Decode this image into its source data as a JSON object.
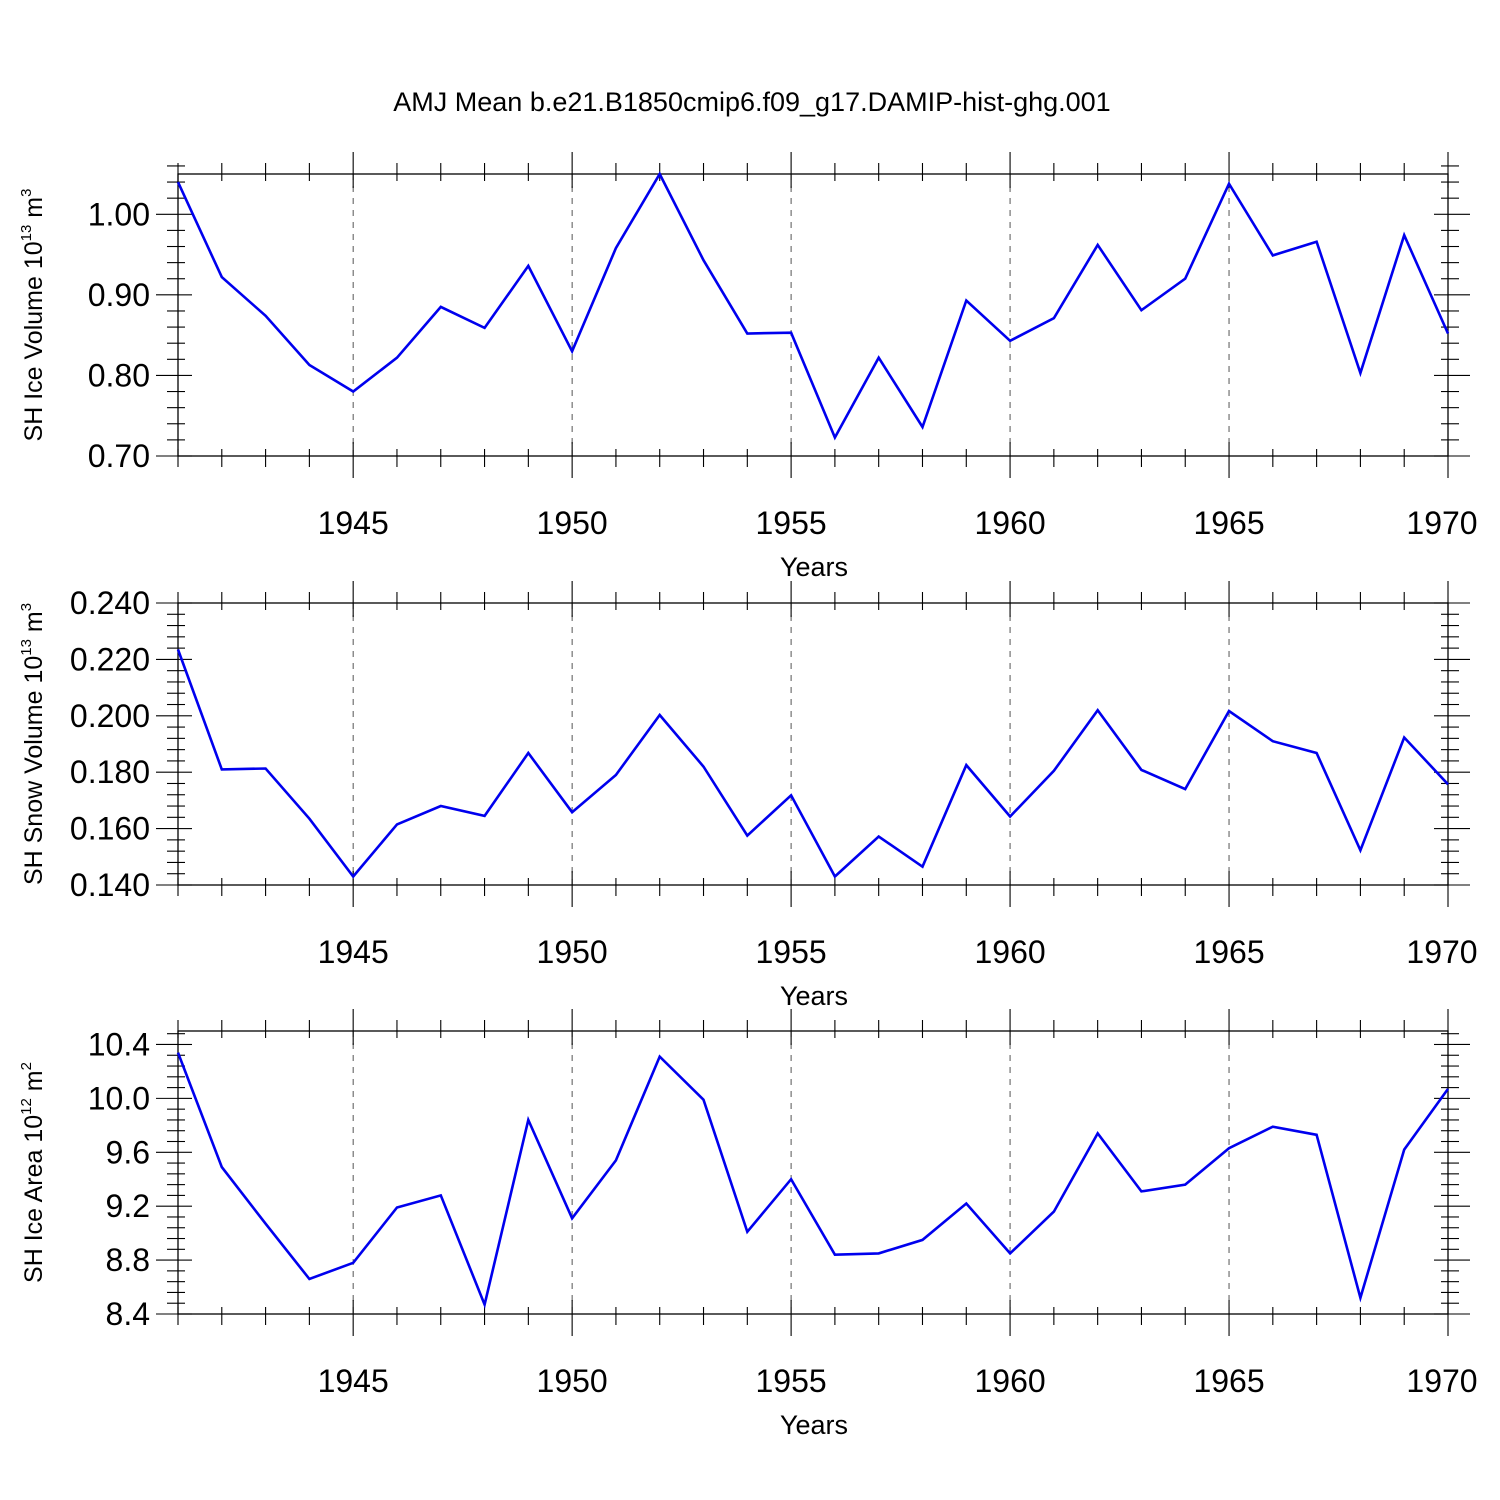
{
  "title": "AMJ Mean b.e21.B1850cmip6.f09_g17.DAMIP-hist-ghg.001",
  "line_color": "#0000ee",
  "chart_data": [
    {
      "type": "line",
      "title": "",
      "xlabel": "Years",
      "ylabel": {
        "text": "SH Ice Volume 10",
        "sup": "13",
        "unit": " m",
        "unit_sup": "3"
      },
      "xlim": [
        1941,
        1970
      ],
      "ylim": [
        0.7,
        1.05
      ],
      "x_major_ticks": [
        1945,
        1950,
        1955,
        1960,
        1965,
        1970
      ],
      "x_tick_labels": [
        "1945",
        "1950",
        "1955",
        "1960",
        "1965",
        "1970"
      ],
      "x_minor_step": 1,
      "y_major_ticks": [
        0.7,
        0.8,
        0.9,
        1.0
      ],
      "y_tick_labels": [
        "0.70",
        "0.80",
        "0.90",
        "1.00"
      ],
      "y_minor_step": 0.02,
      "grid": "dashed vertical at major x ticks",
      "x": [
        1941,
        1942,
        1943,
        1944,
        1945,
        1946,
        1947,
        1948,
        1949,
        1950,
        1951,
        1952,
        1953,
        1954,
        1955,
        1956,
        1957,
        1958,
        1959,
        1960,
        1961,
        1962,
        1963,
        1964,
        1965,
        1966,
        1967,
        1968,
        1969,
        1970
      ],
      "values": [
        1.04,
        0.922,
        0.874,
        0.813,
        0.78,
        0.822,
        0.885,
        0.859,
        0.936,
        0.83,
        0.958,
        1.05,
        0.943,
        0.852,
        0.853,
        0.723,
        0.822,
        0.736,
        0.893,
        0.843,
        0.871,
        0.962,
        0.881,
        0.92,
        1.038,
        0.949,
        0.966,
        0.803,
        0.974,
        0.852
      ]
    },
    {
      "type": "line",
      "title": "",
      "xlabel": "Years",
      "ylabel": {
        "text": "SH Snow Volume 10",
        "sup": "13",
        "unit": " m",
        "unit_sup": "3"
      },
      "xlim": [
        1941,
        1970
      ],
      "ylim": [
        0.14,
        0.24
      ],
      "x_major_ticks": [
        1945,
        1950,
        1955,
        1960,
        1965,
        1970
      ],
      "x_tick_labels": [
        "1945",
        "1950",
        "1955",
        "1960",
        "1965",
        "1970"
      ],
      "x_minor_step": 1,
      "y_major_ticks": [
        0.14,
        0.16,
        0.18,
        0.2,
        0.22,
        0.24
      ],
      "y_tick_labels": [
        "0.140",
        "0.160",
        "0.180",
        "0.200",
        "0.220",
        "0.240"
      ],
      "y_minor_step": 0.004,
      "grid": "dashed vertical at major x ticks",
      "x": [
        1941,
        1942,
        1943,
        1944,
        1945,
        1946,
        1947,
        1948,
        1949,
        1950,
        1951,
        1952,
        1953,
        1954,
        1955,
        1956,
        1957,
        1958,
        1959,
        1960,
        1961,
        1962,
        1963,
        1964,
        1965,
        1966,
        1967,
        1968,
        1969,
        1970
      ],
      "values": [
        0.2235,
        0.181,
        0.1813,
        0.1635,
        0.143,
        0.1615,
        0.168,
        0.1645,
        0.1868,
        0.1658,
        0.179,
        0.2003,
        0.182,
        0.1575,
        0.1718,
        0.143,
        0.1572,
        0.1465,
        0.1825,
        0.1643,
        0.1805,
        0.202,
        0.1808,
        0.174,
        0.2017,
        0.191,
        0.1868,
        0.1523,
        0.1923,
        0.1757
      ]
    },
    {
      "type": "line",
      "title": "",
      "xlabel": "Years",
      "ylabel": {
        "text": "SH Ice Area 10",
        "sup": "12",
        "unit": " m",
        "unit_sup": "2"
      },
      "xlim": [
        1941,
        1970
      ],
      "ylim": [
        8.4,
        10.5
      ],
      "x_major_ticks": [
        1945,
        1950,
        1955,
        1960,
        1965,
        1970
      ],
      "x_tick_labels": [
        "1945",
        "1950",
        "1955",
        "1960",
        "1965",
        "1970"
      ],
      "x_minor_step": 1,
      "y_major_ticks": [
        8.4,
        8.8,
        9.2,
        9.6,
        10.0,
        10.4
      ],
      "y_tick_labels": [
        "8.4",
        "8.8",
        "9.2",
        "9.6",
        "10.0",
        "10.4"
      ],
      "y_minor_step": 0.08,
      "grid": "dashed vertical at major x ticks",
      "x": [
        1941,
        1942,
        1943,
        1944,
        1945,
        1946,
        1947,
        1948,
        1949,
        1950,
        1951,
        1952,
        1953,
        1954,
        1955,
        1956,
        1957,
        1958,
        1959,
        1960,
        1961,
        1962,
        1963,
        1964,
        1965,
        1966,
        1967,
        1968,
        1969,
        1970
      ],
      "values": [
        10.34,
        9.49,
        9.07,
        8.66,
        8.78,
        9.19,
        9.28,
        8.47,
        9.84,
        9.11,
        9.54,
        10.31,
        9.99,
        9.01,
        9.4,
        8.84,
        8.85,
        8.95,
        9.22,
        8.85,
        9.16,
        9.74,
        9.31,
        9.36,
        9.63,
        9.79,
        9.73,
        8.52,
        9.62,
        10.07
      ]
    }
  ]
}
